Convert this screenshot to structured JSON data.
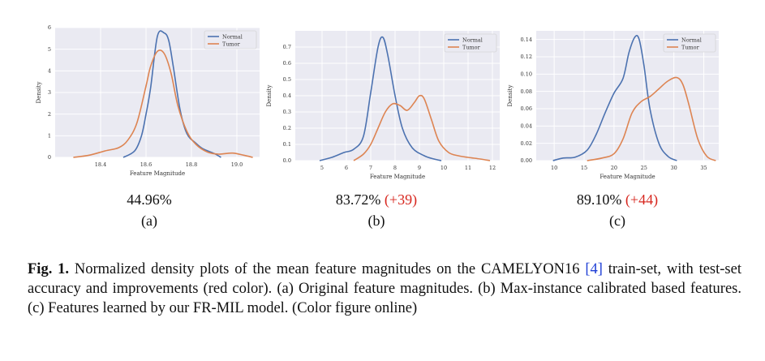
{
  "colors": {
    "normal": "#4c72b0",
    "tumor": "#dd8452",
    "improvement": "#d7261e",
    "plot_bg": "#eaeaf2",
    "cite": "#1f3fd6"
  },
  "panels": [
    {
      "score": "44.96%",
      "delta": "",
      "label": "(a)"
    },
    {
      "score": "83.72%",
      "delta": "(+39)",
      "label": "(b)"
    },
    {
      "score": "89.10%",
      "delta": "(+44)",
      "label": "(c)"
    }
  ],
  "caption": {
    "fig_label": "Fig. 1.",
    "text_1": " Normalized density plots of the mean feature magnitudes on the CAMELYON16 ",
    "citation": "[4]",
    "text_2": " train-set, with test-set accuracy and improvements (red color). (a) Original feature magnitudes. (b) Max-instance calibrated based features. (c) Features learned by our FR-MIL model. (Color figure online)"
  },
  "chart_data": [
    {
      "type": "line",
      "xlabel": "Feature Magnitude",
      "ylabel": "Density",
      "xlim": [
        18.2,
        19.1
      ],
      "ylim": [
        0,
        6
      ],
      "xticks": [
        18.4,
        18.6,
        18.8,
        19.0
      ],
      "xtick_labels": [
        "18.4",
        "18.6",
        "18.8",
        "19.0"
      ],
      "yticks": [
        0,
        1,
        2,
        3,
        4,
        5,
        6
      ],
      "ytick_labels": [
        "0",
        "1",
        "2",
        "3",
        "4",
        "5",
        "6"
      ],
      "grid": true,
      "legend": "top-right",
      "series": [
        {
          "name": "Normal",
          "x": [
            18.5,
            18.55,
            18.58,
            18.6,
            18.62,
            18.65,
            18.68,
            18.7,
            18.72,
            18.75,
            18.78,
            18.82,
            18.85,
            18.9,
            18.93
          ],
          "y": [
            0,
            0.3,
            1.0,
            2.0,
            3.2,
            5.6,
            5.75,
            5.4,
            4.2,
            2.2,
            1.1,
            0.65,
            0.4,
            0.18,
            0
          ]
        },
        {
          "name": "Tumor",
          "x": [
            18.28,
            18.35,
            18.42,
            18.48,
            18.52,
            18.56,
            18.6,
            18.62,
            18.65,
            18.68,
            18.71,
            18.74,
            18.78,
            18.82,
            18.87,
            18.92,
            18.98,
            19.03,
            19.07
          ],
          "y": [
            0,
            0.1,
            0.3,
            0.45,
            0.8,
            1.6,
            3.3,
            4.2,
            4.9,
            4.8,
            3.9,
            2.4,
            1.2,
            0.6,
            0.25,
            0.15,
            0.2,
            0.1,
            0
          ]
        }
      ]
    },
    {
      "type": "line",
      "xlabel": "Feature Magnitude",
      "ylabel": "Density",
      "xlim": [
        3.9,
        12.3
      ],
      "ylim": [
        0,
        0.8
      ],
      "xticks": [
        5,
        6,
        7,
        8,
        9,
        10,
        11,
        12
      ],
      "xtick_labels": [
        "5",
        "6",
        "7",
        "8",
        "9",
        "10",
        "11",
        "12"
      ],
      "yticks": [
        0,
        0.1,
        0.2,
        0.3,
        0.4,
        0.5,
        0.6,
        0.7
      ],
      "ytick_labels": [
        "0.0",
        "0.1",
        "0.2",
        "0.3",
        "0.4",
        "0.5",
        "0.6",
        "0.7"
      ],
      "grid": true,
      "legend": "top-right",
      "series": [
        {
          "name": "Normal",
          "x": [
            4.9,
            5.4,
            5.9,
            6.3,
            6.7,
            7.0,
            7.3,
            7.5,
            7.7,
            8.0,
            8.3,
            8.7,
            9.2,
            9.6,
            9.9
          ],
          "y": [
            0,
            0.02,
            0.05,
            0.07,
            0.15,
            0.42,
            0.7,
            0.76,
            0.65,
            0.4,
            0.2,
            0.08,
            0.03,
            0.01,
            0
          ]
        },
        {
          "name": "Tumor",
          "x": [
            6.3,
            6.7,
            7.0,
            7.3,
            7.6,
            7.9,
            8.2,
            8.5,
            8.8,
            9.0,
            9.2,
            9.5,
            9.8,
            10.2,
            10.6,
            11.0,
            11.5,
            11.9
          ],
          "y": [
            0,
            0.04,
            0.1,
            0.2,
            0.3,
            0.35,
            0.34,
            0.31,
            0.36,
            0.4,
            0.38,
            0.25,
            0.12,
            0.05,
            0.03,
            0.02,
            0.01,
            0
          ]
        }
      ]
    },
    {
      "type": "line",
      "xlabel": "Feature Magnitude",
      "ylabel": "Density",
      "xlim": [
        7,
        37.5
      ],
      "ylim": [
        0,
        0.15
      ],
      "xticks": [
        10,
        15,
        20,
        25,
        30,
        35
      ],
      "xtick_labels": [
        "10",
        "15",
        "20",
        "25",
        "30",
        "35"
      ],
      "yticks": [
        0,
        0.02,
        0.04,
        0.06,
        0.08,
        0.1,
        0.12,
        0.14
      ],
      "ytick_labels": [
        "0.00",
        "0.02",
        "0.04",
        "0.06",
        "0.08",
        "0.10",
        "0.12",
        "0.14"
      ],
      "grid": true,
      "legend": "top-right",
      "series": [
        {
          "name": "Normal",
          "x": [
            9.8,
            11.5,
            13.5,
            15.5,
            17.0,
            18.5,
            20.0,
            21.5,
            22.5,
            23.5,
            24.2,
            25.0,
            26.0,
            27.5,
            29.0,
            30.5
          ],
          "y": [
            0,
            0.003,
            0.004,
            0.012,
            0.03,
            0.055,
            0.078,
            0.095,
            0.125,
            0.143,
            0.14,
            0.11,
            0.06,
            0.02,
            0.005,
            0
          ]
        },
        {
          "name": "Tumor",
          "x": [
            15.5,
            18.0,
            20.0,
            21.5,
            23.0,
            24.5,
            26.0,
            27.5,
            29.0,
            30.5,
            31.5,
            32.5,
            34.0,
            35.5,
            37.0
          ],
          "y": [
            0,
            0.003,
            0.008,
            0.025,
            0.055,
            0.068,
            0.074,
            0.083,
            0.092,
            0.096,
            0.088,
            0.065,
            0.025,
            0.005,
            0
          ]
        }
      ]
    }
  ]
}
